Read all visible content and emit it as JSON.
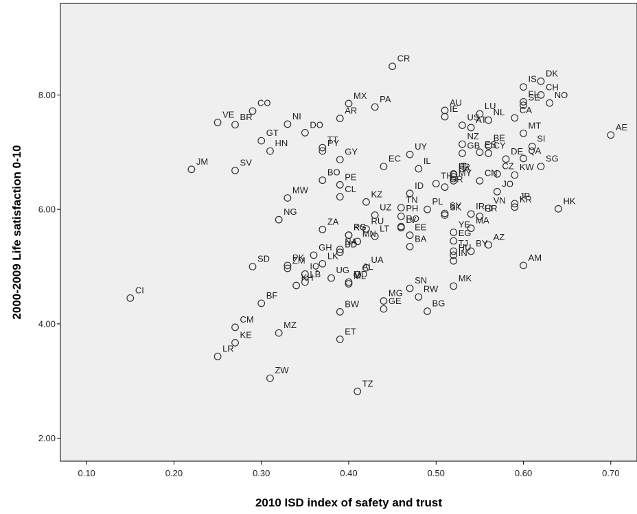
{
  "chart_data": {
    "type": "scatter",
    "title": "",
    "xlabel": "2010 ISD index of safety and trust",
    "ylabel": "2000-2009 Life satisfaction 0-10",
    "xlim": [
      0.07,
      0.73
    ],
    "ylim": [
      1.6,
      9.6
    ],
    "x_ticks": [
      0.1,
      0.2,
      0.3,
      0.4,
      0.5,
      0.6,
      0.7
    ],
    "x_tick_labels": [
      "0.10",
      "0.20",
      "0.30",
      "0.40",
      "0.50",
      "0.60",
      "0.70"
    ],
    "y_ticks": [
      2.0,
      4.0,
      6.0,
      8.0
    ],
    "y_tick_labels": [
      "2.00",
      "4.00",
      "6.00",
      "8.00"
    ],
    "grid": false,
    "legend": "none",
    "colors": {
      "plot_background": "#efefef",
      "marker_stroke": "#333333"
    },
    "points": [
      {
        "label": "CR",
        "x": 0.45,
        "y": 8.5
      },
      {
        "label": "DK",
        "x": 0.62,
        "y": 8.24
      },
      {
        "label": "CH",
        "x": 0.62,
        "y": 8.0
      },
      {
        "label": "IS",
        "x": 0.6,
        "y": 8.14
      },
      {
        "label": "FI",
        "x": 0.6,
        "y": 7.88
      },
      {
        "label": "SE",
        "x": 0.6,
        "y": 7.82
      },
      {
        "label": "NO",
        "x": 0.63,
        "y": 7.86
      },
      {
        "label": "AE",
        "x": 0.7,
        "y": 7.3
      },
      {
        "label": "MX",
        "x": 0.4,
        "y": 7.85
      },
      {
        "label": "PA",
        "x": 0.43,
        "y": 7.79
      },
      {
        "label": "CO",
        "x": 0.29,
        "y": 7.72
      },
      {
        "label": "VE",
        "x": 0.25,
        "y": 7.52
      },
      {
        "label": "AU",
        "x": 0.51,
        "y": 7.73
      },
      {
        "label": "IE",
        "x": 0.51,
        "y": 7.62
      },
      {
        "label": "US",
        "x": 0.53,
        "y": 7.47
      },
      {
        "label": "LU",
        "x": 0.55,
        "y": 7.67
      },
      {
        "label": "NL",
        "x": 0.56,
        "y": 7.56
      },
      {
        "label": "CA",
        "x": 0.59,
        "y": 7.6
      },
      {
        "label": "AR",
        "x": 0.39,
        "y": 7.59
      },
      {
        "label": "DO",
        "x": 0.35,
        "y": 7.34
      },
      {
        "label": "NI",
        "x": 0.33,
        "y": 7.49
      },
      {
        "label": "BR",
        "x": 0.27,
        "y": 7.48
      },
      {
        "label": "GT",
        "x": 0.3,
        "y": 7.2
      },
      {
        "label": "TT",
        "x": 0.37,
        "y": 7.08
      },
      {
        "label": "PY",
        "x": 0.37,
        "y": 7.02
      },
      {
        "label": "AT",
        "x": 0.54,
        "y": 7.43
      },
      {
        "label": "BE",
        "x": 0.56,
        "y": 7.11
      },
      {
        "label": "MT",
        "x": 0.6,
        "y": 7.33
      },
      {
        "label": "NZ",
        "x": 0.53,
        "y": 7.14
      },
      {
        "label": "ES",
        "x": 0.55,
        "y": 7.0
      },
      {
        "label": "GB",
        "x": 0.53,
        "y": 6.98
      },
      {
        "label": "CY",
        "x": 0.56,
        "y": 6.98
      },
      {
        "label": "DE",
        "x": 0.58,
        "y": 6.88
      },
      {
        "label": "SI",
        "x": 0.61,
        "y": 7.1
      },
      {
        "label": "SG",
        "x": 0.62,
        "y": 6.75
      },
      {
        "label": "JM",
        "x": 0.22,
        "y": 6.7
      },
      {
        "label": "SV",
        "x": 0.27,
        "y": 6.68
      },
      {
        "label": "HN",
        "x": 0.31,
        "y": 7.02
      },
      {
        "label": "GY",
        "x": 0.39,
        "y": 6.87
      },
      {
        "label": "BO",
        "x": 0.37,
        "y": 6.51
      },
      {
        "label": "UY",
        "x": 0.47,
        "y": 6.96
      },
      {
        "label": "IL",
        "x": 0.48,
        "y": 6.71
      },
      {
        "label": "IT",
        "x": 0.52,
        "y": 6.62
      },
      {
        "label": "SA",
        "x": 0.52,
        "y": 6.57
      },
      {
        "label": "MY",
        "x": 0.52,
        "y": 6.5
      },
      {
        "label": "CZ",
        "x": 0.57,
        "y": 6.62
      },
      {
        "label": "KW",
        "x": 0.59,
        "y": 6.6
      },
      {
        "label": "QA",
        "x": 0.6,
        "y": 6.89
      },
      {
        "label": "EC",
        "x": 0.44,
        "y": 6.75
      },
      {
        "label": "TH",
        "x": 0.5,
        "y": 6.45
      },
      {
        "label": "CN",
        "x": 0.55,
        "y": 6.5
      },
      {
        "label": "MW",
        "x": 0.33,
        "y": 6.2
      },
      {
        "label": "CL",
        "x": 0.39,
        "y": 6.22
      },
      {
        "label": "ID",
        "x": 0.47,
        "y": 6.28
      },
      {
        "label": "KZ",
        "x": 0.42,
        "y": 6.13
      },
      {
        "label": "GR",
        "x": 0.51,
        "y": 6.39
      },
      {
        "label": "FR",
        "x": 0.52,
        "y": 6.61
      },
      {
        "label": "JO",
        "x": 0.57,
        "y": 6.31
      },
      {
        "label": "JP",
        "x": 0.59,
        "y": 6.1
      },
      {
        "label": "HK",
        "x": 0.64,
        "y": 6.01
      },
      {
        "label": "PE",
        "x": 0.39,
        "y": 6.43
      },
      {
        "label": "TN",
        "x": 0.46,
        "y": 6.03
      },
      {
        "label": "PL",
        "x": 0.49,
        "y": 6.0
      },
      {
        "label": "PH",
        "x": 0.46,
        "y": 5.88
      },
      {
        "label": "SK",
        "x": 0.51,
        "y": 5.9
      },
      {
        "label": "IR",
        "x": 0.54,
        "y": 5.92
      },
      {
        "label": "VN",
        "x": 0.56,
        "y": 6.02
      },
      {
        "label": "HR",
        "x": 0.55,
        "y": 5.88
      },
      {
        "label": "KR",
        "x": 0.59,
        "y": 6.04
      },
      {
        "label": "NG",
        "x": 0.32,
        "y": 5.82
      },
      {
        "label": "RU",
        "x": 0.42,
        "y": 5.66
      },
      {
        "label": "UZ",
        "x": 0.43,
        "y": 5.9
      },
      {
        "label": "RO",
        "x": 0.46,
        "y": 5.7
      },
      {
        "label": "SY",
        "x": 0.51,
        "y": 5.93
      },
      {
        "label": "ZA",
        "x": 0.37,
        "y": 5.65
      },
      {
        "label": "KG",
        "x": 0.4,
        "y": 5.55
      },
      {
        "label": "NA",
        "x": 0.39,
        "y": 5.3
      },
      {
        "label": "MN",
        "x": 0.41,
        "y": 5.44
      },
      {
        "label": "EE",
        "x": 0.47,
        "y": 5.55
      },
      {
        "label": "YE",
        "x": 0.52,
        "y": 5.6
      },
      {
        "label": "EG",
        "x": 0.52,
        "y": 5.45
      },
      {
        "label": "MA",
        "x": 0.54,
        "y": 5.67
      },
      {
        "label": "SD",
        "x": 0.29,
        "y": 5.0
      },
      {
        "label": "PK",
        "x": 0.33,
        "y": 5.02
      },
      {
        "label": "GH",
        "x": 0.36,
        "y": 5.2
      },
      {
        "label": "BD",
        "x": 0.39,
        "y": 5.25
      },
      {
        "label": "RS",
        "x": 0.4,
        "y": 5.55
      },
      {
        "label": "LT",
        "x": 0.43,
        "y": 5.53
      },
      {
        "label": "BA",
        "x": 0.47,
        "y": 5.35
      },
      {
        "label": "HU",
        "x": 0.52,
        "y": 5.2
      },
      {
        "label": "IN",
        "x": 0.52,
        "y": 5.1
      },
      {
        "label": "LV",
        "x": 0.46,
        "y": 5.68
      },
      {
        "label": "AZ",
        "x": 0.56,
        "y": 5.38
      },
      {
        "label": "AM",
        "x": 0.6,
        "y": 5.02
      },
      {
        "label": "ZM",
        "x": 0.33,
        "y": 4.97
      },
      {
        "label": "IQ",
        "x": 0.35,
        "y": 4.87
      },
      {
        "label": "LK",
        "x": 0.37,
        "y": 5.05
      },
      {
        "label": "UG",
        "x": 0.38,
        "y": 4.8
      },
      {
        "label": "UA",
        "x": 0.42,
        "y": 4.98
      },
      {
        "label": "TJ",
        "x": 0.52,
        "y": 5.27
      },
      {
        "label": "BY",
        "x": 0.54,
        "y": 5.27
      },
      {
        "label": "KH",
        "x": 0.34,
        "y": 4.67
      },
      {
        "label": "BF",
        "x": 0.3,
        "y": 4.36
      },
      {
        "label": "ML",
        "x": 0.4,
        "y": 4.7
      },
      {
        "label": "MD",
        "x": 0.4,
        "y": 4.73
      },
      {
        "label": "AL",
        "x": 0.41,
        "y": 4.86
      },
      {
        "label": "SN",
        "x": 0.47,
        "y": 4.62
      },
      {
        "label": "CI",
        "x": 0.15,
        "y": 4.45
      },
      {
        "label": "LB",
        "x": 0.35,
        "y": 4.73
      },
      {
        "label": "BW",
        "x": 0.39,
        "y": 4.21
      },
      {
        "label": "GE",
        "x": 0.44,
        "y": 4.26
      },
      {
        "label": "RW",
        "x": 0.48,
        "y": 4.47
      },
      {
        "label": "MK",
        "x": 0.52,
        "y": 4.66
      },
      {
        "label": "CM",
        "x": 0.27,
        "y": 3.94
      },
      {
        "label": "KE",
        "x": 0.27,
        "y": 3.67
      },
      {
        "label": "MZ",
        "x": 0.32,
        "y": 3.84
      },
      {
        "label": "ET",
        "x": 0.39,
        "y": 3.73
      },
      {
        "label": "MG",
        "x": 0.44,
        "y": 4.4
      },
      {
        "label": "BG",
        "x": 0.49,
        "y": 4.22
      },
      {
        "label": "LR",
        "x": 0.25,
        "y": 3.43
      },
      {
        "label": "ZW",
        "x": 0.31,
        "y": 3.05
      },
      {
        "label": "TZ",
        "x": 0.41,
        "y": 2.82
      }
    ]
  }
}
